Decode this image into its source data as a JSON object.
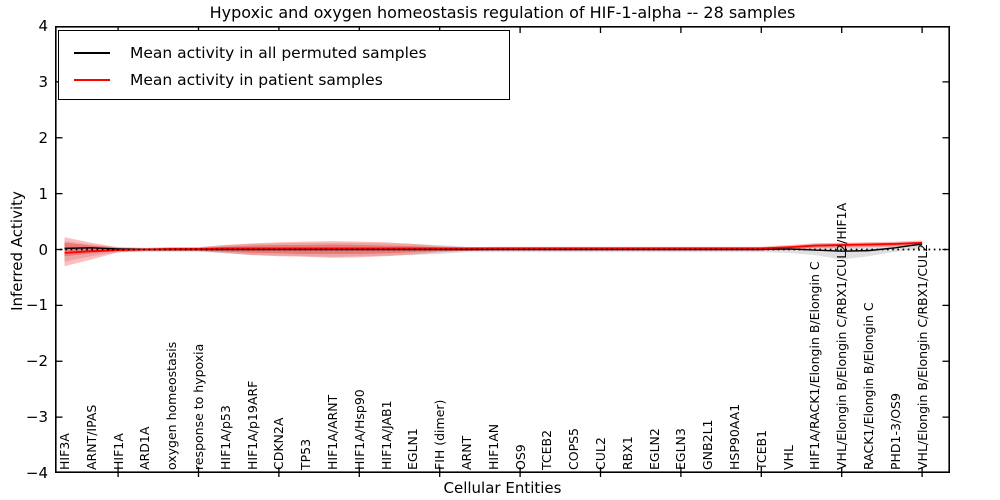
{
  "accent_colors": {
    "patient_red": "#ff0000",
    "permuted_black": "#000000",
    "background": "#ffffff"
  },
  "header": {
    "title": "Hypoxic and oxygen homeostasis regulation of HIF-1-alpha -- 28 samples"
  },
  "axes": {
    "xlabel": "Cellular Entities",
    "ylabel": "Inferred Activity"
  },
  "legend": {
    "entries": [
      {
        "label": "Mean activity in all permuted samples",
        "color": "#000000"
      },
      {
        "label": "Mean activity in patient samples",
        "color": "#ff0000"
      }
    ]
  },
  "chart_data": {
    "type": "line",
    "title": "Hypoxic and oxygen homeostasis regulation of HIF-1-alpha -- 28 samples",
    "xlabel": "Cellular Entities",
    "ylabel": "Inferred Activity",
    "ylim": [
      -4,
      4
    ],
    "yticks": [
      4,
      3,
      2,
      1,
      0,
      -1,
      -2,
      -3,
      -4
    ],
    "ytick_labels": [
      "4",
      "3",
      "2",
      "1",
      "0",
      "−1",
      "−2",
      "−3",
      "−4"
    ],
    "grid": false,
    "legend_position": "upper left",
    "zero_line": {
      "y": 0,
      "style": "dotted",
      "color": "#000000"
    },
    "categories": [
      "HIF3A",
      "ARNT/IPAS",
      "HIF1A",
      "ARD1A",
      "oxygen homeostasis",
      "response to hypoxia",
      "HIF1A/p53",
      "HIF1A/p19ARF",
      "CDKN2A",
      "TP53",
      "HIF1A/ARNT",
      "HIF1A/Hsp90",
      "HIF1A/JAB1",
      "EGLN1",
      "FIH (dimer)",
      "ARNT",
      "HIF1AN",
      "OS9",
      "TCEB2",
      "COPS5",
      "CUL2",
      "RBX1",
      "EGLN2",
      "EGLN3",
      "GNB2L1",
      "HSP90AA1",
      "TCEB1",
      "VHL",
      "HIF1A/RACK1/Elongin B/Elongin C",
      "VHL/Elongin B/Elongin C/RBX1/CUL2/HIF1A",
      "RACK1/Elongin B/Elongin C",
      "PHD1-3/OS9",
      "VHL/Elongin B/Elongin C/RBX1/CUL2"
    ],
    "series": [
      {
        "name": "Mean activity in all permuted samples",
        "color": "#000000",
        "values": [
          0.02,
          0.03,
          0.01,
          0,
          0,
          0,
          0,
          0,
          0,
          0,
          0,
          0,
          0,
          0,
          0,
          0,
          0,
          0,
          0,
          0,
          0,
          0,
          0,
          0,
          0,
          0,
          0,
          0.01,
          -0.01,
          -0.03,
          -0.02,
          0.03,
          0.1
        ]
      },
      {
        "name": "Mean activity in patient samples",
        "color": "#ff0000",
        "values": [
          -0.06,
          -0.03,
          -0.01,
          0,
          0.01,
          0.01,
          0.02,
          0.02,
          0.02,
          0.02,
          0.02,
          0.02,
          0.02,
          0.02,
          0.02,
          0.02,
          0.02,
          0.02,
          0.02,
          0.02,
          0.02,
          0.02,
          0.02,
          0.02,
          0.02,
          0.02,
          0.02,
          0.04,
          0.07,
          0.08,
          0.09,
          0.1,
          0.12
        ]
      }
    ],
    "bands": [
      {
        "name": "permuted-std-band",
        "color": "rgba(0,0,0,0.12)",
        "lower": [
          -0.22,
          -0.12,
          -0.05,
          -0.04,
          -0.04,
          -0.04,
          -0.07,
          -0.1,
          -0.11,
          -0.12,
          -0.13,
          -0.12,
          -0.11,
          -0.1,
          -0.08,
          -0.05,
          -0.05,
          -0.05,
          -0.05,
          -0.05,
          -0.05,
          -0.05,
          -0.05,
          -0.05,
          -0.05,
          -0.05,
          -0.05,
          -0.06,
          -0.1,
          -0.18,
          -0.12,
          -0.04,
          0.02
        ],
        "upper": [
          0.15,
          0.09,
          0.04,
          0.03,
          0.04,
          0.04,
          0.08,
          0.1,
          0.11,
          0.12,
          0.12,
          0.12,
          0.11,
          0.1,
          0.08,
          0.05,
          0.04,
          0.04,
          0.04,
          0.04,
          0.04,
          0.04,
          0.04,
          0.04,
          0.04,
          0.04,
          0.04,
          0.05,
          0.11,
          0.11,
          0.12,
          0.12,
          0.14
        ]
      },
      {
        "name": "patient-std-band-outer",
        "color": "rgba(255,0,0,0.26)",
        "lower": [
          -0.3,
          -0.18,
          -0.05,
          -0.03,
          -0.03,
          -0.03,
          -0.06,
          -0.1,
          -0.12,
          -0.13,
          -0.15,
          -0.14,
          -0.12,
          -0.09,
          -0.05,
          -0.03,
          -0.02,
          -0.02,
          -0.02,
          -0.02,
          -0.02,
          -0.02,
          -0.02,
          -0.02,
          -0.02,
          -0.02,
          -0.02,
          -0.01,
          0.02,
          0.03,
          0.04,
          0.05,
          0.06
        ],
        "upper": [
          0.22,
          0.12,
          0.04,
          0.03,
          0.04,
          0.04,
          0.08,
          0.11,
          0.13,
          0.14,
          0.15,
          0.14,
          0.13,
          0.1,
          0.06,
          0.04,
          0.05,
          0.05,
          0.05,
          0.05,
          0.05,
          0.05,
          0.05,
          0.05,
          0.05,
          0.05,
          0.05,
          0.08,
          0.11,
          0.12,
          0.13,
          0.14,
          0.16
        ]
      },
      {
        "name": "patient-std-band-inner",
        "color": "rgba(255,0,0,0.28)",
        "lower": [
          -0.12,
          -0.07,
          -0.03,
          -0.02,
          -0.02,
          -0.02,
          -0.04,
          -0.06,
          -0.07,
          -0.08,
          -0.08,
          -0.08,
          -0.07,
          -0.05,
          -0.03,
          -0.02,
          -0.01,
          -0.01,
          -0.01,
          -0.01,
          -0.01,
          -0.01,
          -0.01,
          -0.01,
          -0.01,
          -0.01,
          -0.01,
          0.0,
          0.04,
          0.05,
          0.06,
          0.07,
          0.08
        ],
        "upper": [
          0.12,
          0.07,
          0.03,
          0.02,
          0.03,
          0.03,
          0.05,
          0.07,
          0.08,
          0.08,
          0.09,
          0.08,
          0.07,
          0.06,
          0.04,
          0.03,
          0.04,
          0.04,
          0.04,
          0.04,
          0.04,
          0.04,
          0.04,
          0.04,
          0.04,
          0.04,
          0.04,
          0.06,
          0.09,
          0.1,
          0.11,
          0.12,
          0.13
        ]
      }
    ]
  }
}
